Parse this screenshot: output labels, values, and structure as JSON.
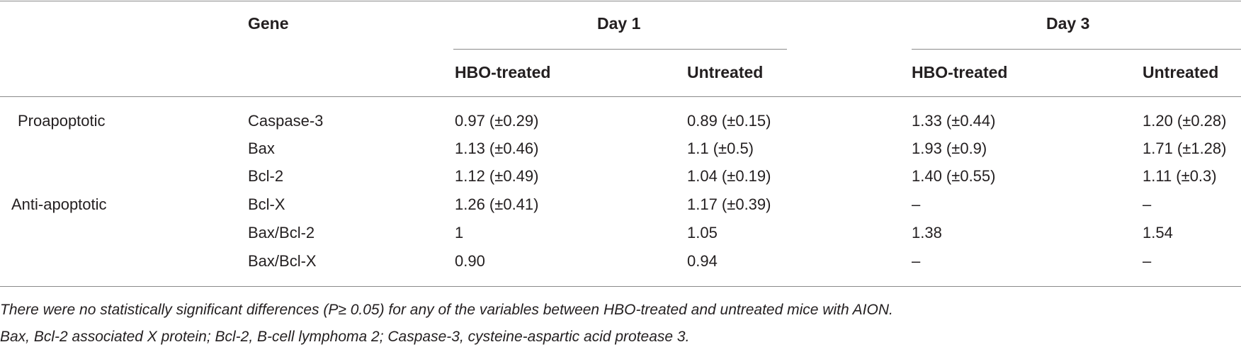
{
  "header": {
    "gene": "Gene",
    "day1": "Day 1",
    "day3": "Day 3",
    "subcols": [
      "HBO-treated",
      "Untreated",
      "HBO-treated",
      "Untreated"
    ]
  },
  "rows": [
    {
      "category": "Proapoptotic",
      "gene": "Caspase-3",
      "values": [
        "0.97 (±0.29)",
        "0.89 (±0.15)",
        "1.33 (±0.44)",
        "1.20 (±0.28)"
      ]
    },
    {
      "category": "",
      "gene": "Bax",
      "values": [
        "1.13 (±0.46)",
        "1.1 (±0.5)",
        "1.93 (±0.9)",
        "1.71 (±1.28)"
      ]
    },
    {
      "category": "",
      "gene": "Bcl-2",
      "values": [
        "1.12 (±0.49)",
        "1.04 (±0.19)",
        "1.40 (±0.55)",
        "1.11 (±0.3)"
      ]
    },
    {
      "category": "Anti-apoptotic",
      "gene": "Bcl-X",
      "values": [
        "1.26 (±0.41)",
        "1.17 (±0.39)",
        "–",
        "–"
      ]
    },
    {
      "category": "",
      "gene": "Bax/Bcl-2",
      "values": [
        "1",
        "1.05",
        "1.38",
        "1.54"
      ]
    },
    {
      "category": "",
      "gene": "Bax/Bcl-X",
      "values": [
        "0.90",
        "0.94",
        "–",
        "–"
      ]
    }
  ],
  "footnotes": [
    "There were no statistically significant differences (P≥ 0.05) for any of the variables between HBO-treated and untreated mice with AION.",
    "Bax, Bcl-2 associated X protein; Bcl-2, B-cell lymphoma 2; Caspase-3, cysteine-aspartic acid protease 3."
  ]
}
